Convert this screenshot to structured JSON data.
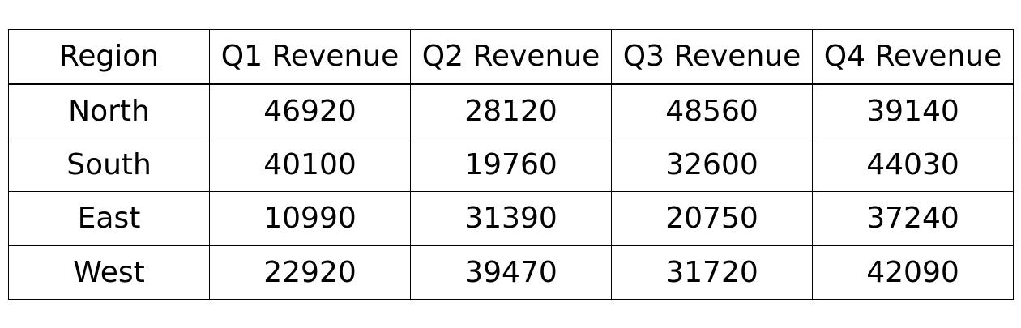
{
  "chart_data": {
    "type": "table",
    "columns": [
      "Region",
      "Q1 Revenue",
      "Q2 Revenue",
      "Q3 Revenue",
      "Q4 Revenue"
    ],
    "rows": [
      [
        "North",
        "46920",
        "28120",
        "48560",
        "39140"
      ],
      [
        "South",
        "40100",
        "19760",
        "32600",
        "44030"
      ],
      [
        "East",
        "10990",
        "31390",
        "20750",
        "37240"
      ],
      [
        "West",
        "22920",
        "39470",
        "31720",
        "42090"
      ]
    ]
  }
}
